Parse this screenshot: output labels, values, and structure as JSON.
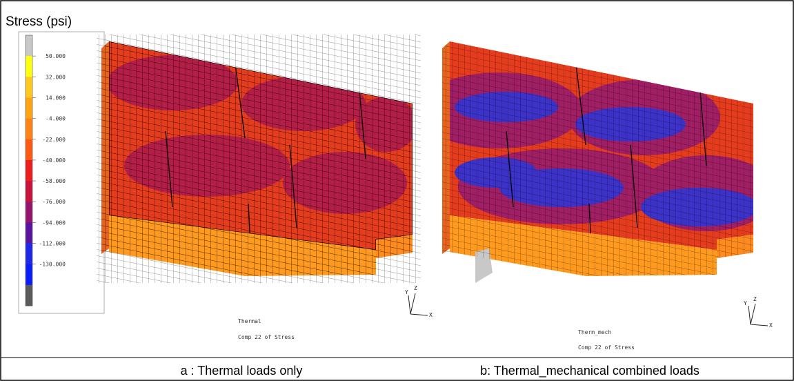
{
  "legend": {
    "title": "Stress (psi)",
    "labels": [
      "50.000",
      "32.000",
      "14.000",
      "-4.000",
      "-22.000",
      "-40.000",
      "-58.000",
      "-76.000",
      "-94.000",
      "-112.000",
      "-130.000"
    ],
    "colors": [
      "#c8c8c8",
      "#ffff10",
      "#ffc81e",
      "#ffa514",
      "#ff8214",
      "#ff5a14",
      "#ee1e1e",
      "#c8143c",
      "#96146e",
      "#5a14a0",
      "#1e28e6",
      "#0a1efa",
      "#5a5a5a"
    ]
  },
  "panels": [
    {
      "name": "Thermal",
      "subtitle": "Comp 22 of Stress",
      "caption": "a : Thermal loads only",
      "axes": [
        "Y",
        "Z",
        "X"
      ]
    },
    {
      "name": "Therm_mech",
      "subtitle": "Comp 22 of Stress",
      "caption": "b: Thermal_mechanical combined loads",
      "axes": [
        "Y",
        "Z",
        "X"
      ]
    }
  ]
}
